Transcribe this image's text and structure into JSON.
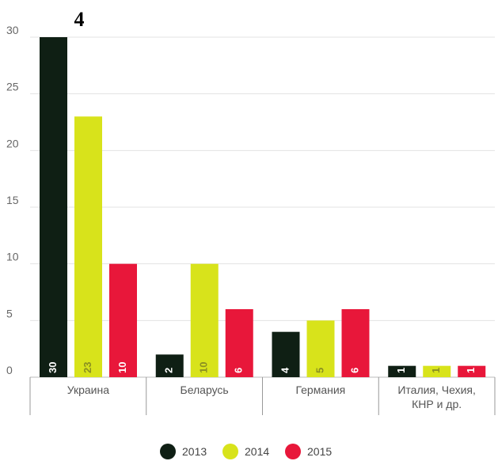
{
  "chart_data": {
    "type": "bar",
    "title": "4",
    "xlabel": "",
    "ylabel": "",
    "categories": [
      [
        "Украина"
      ],
      [
        "Беларусь"
      ],
      [
        "Германия"
      ],
      [
        "Италия, Чехия,",
        "КНР и др."
      ]
    ],
    "series": [
      {
        "name": "2013",
        "color": "#0f1f14",
        "label_color": "#ffffff",
        "values": [
          30,
          2,
          4,
          1
        ]
      },
      {
        "name": "2014",
        "color": "#d8e31b",
        "label_color": "#8a8f22",
        "values": [
          23,
          10,
          5,
          1
        ]
      },
      {
        "name": "2015",
        "color": "#e8173a",
        "label_color": "#ffffff",
        "values": [
          10,
          6,
          6,
          1
        ]
      }
    ],
    "ylim": [
      0,
      30
    ],
    "yticks": [
      0,
      5,
      10,
      15,
      20,
      25,
      30
    ],
    "grid": true,
    "legend": "bottom-center"
  }
}
